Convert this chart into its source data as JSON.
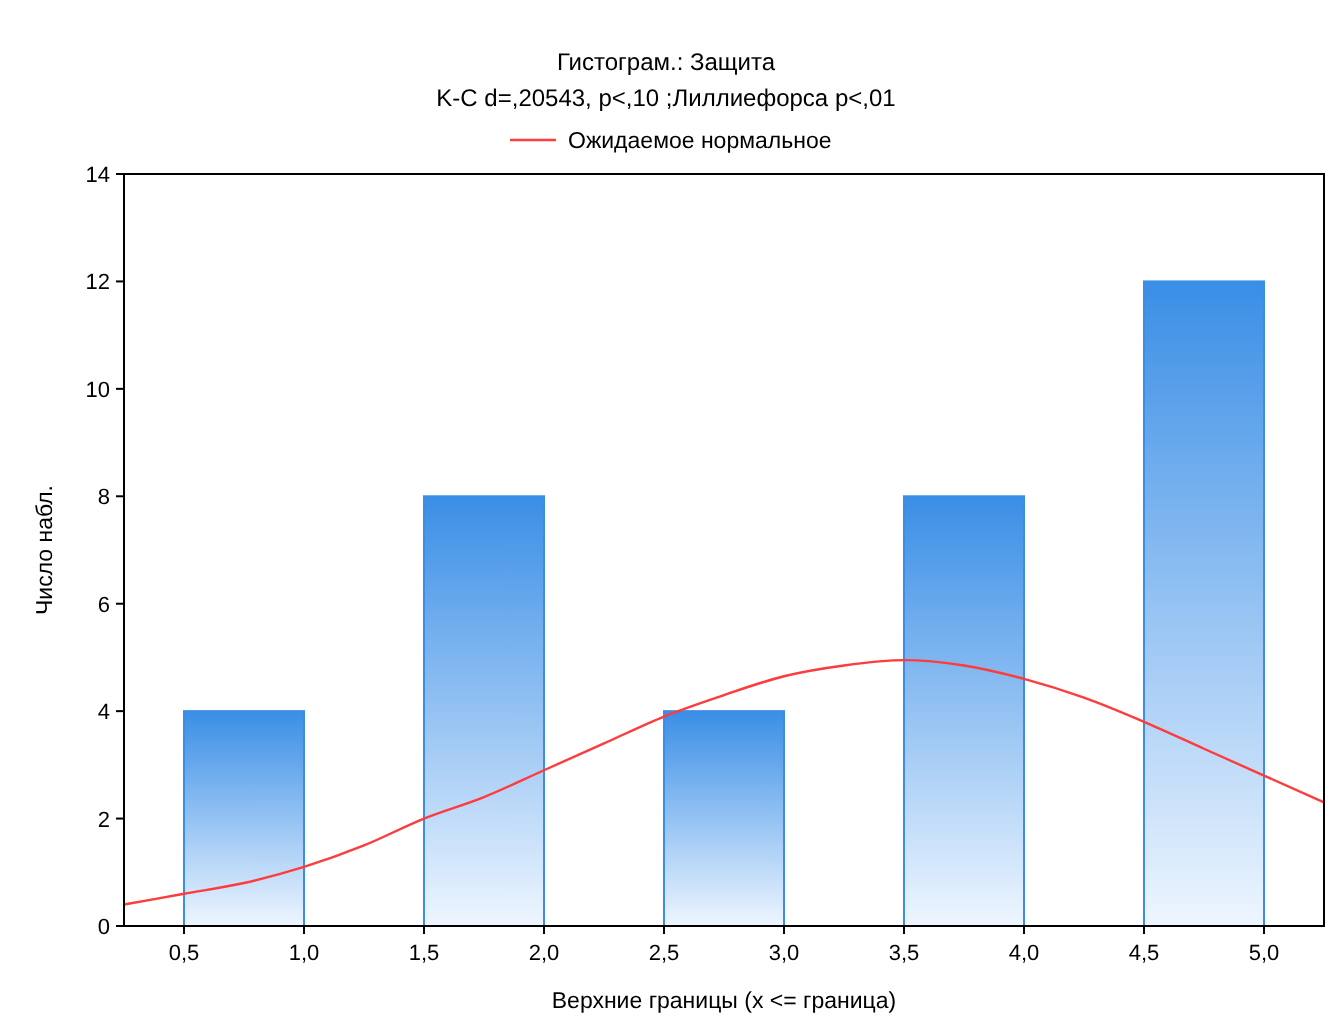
{
  "chart_data": {
    "type": "histogram",
    "title": "Гистограм.: Защита",
    "subtitle": "K-C d=,20543, p<,10 ;Лиллиефорса p<,01",
    "xlabel": "Верхние границы (x <= граница)",
    "ylabel": "Число набл.",
    "bins": [
      0.5,
      1.0,
      1.5,
      2.0,
      2.5,
      3.0,
      3.5,
      4.0,
      4.5,
      5.0
    ],
    "values": [
      4,
      0,
      8,
      0,
      4,
      0,
      8,
      0,
      12
    ],
    "color": "#3a8ee6",
    "series": [
      {
        "type": "line",
        "name": "Ожидаемое нормальное",
        "color": "#ff3b3b",
        "x": [
          0.25,
          0.5,
          0.75,
          1.0,
          1.25,
          1.5,
          1.75,
          2.0,
          2.25,
          2.5,
          2.75,
          3.0,
          3.25,
          3.5,
          3.75,
          4.0,
          4.25,
          4.5,
          4.75,
          5.0,
          5.25
        ],
        "values": [
          0.4,
          0.6,
          0.8,
          1.1,
          1.5,
          2.0,
          2.4,
          2.9,
          3.4,
          3.9,
          4.3,
          4.65,
          4.85,
          4.95,
          4.85,
          4.6,
          4.25,
          3.8,
          3.3,
          2.8,
          2.3
        ]
      }
    ],
    "xlim": [
      0.25,
      5.25
    ],
    "xticks": [
      {
        "value": 0.5,
        "label": "0,5"
      },
      {
        "value": 1.0,
        "label": "1,0"
      },
      {
        "value": 1.5,
        "label": "1,5"
      },
      {
        "value": 2.0,
        "label": "2,0"
      },
      {
        "value": 2.5,
        "label": "2,5"
      },
      {
        "value": 3.0,
        "label": "3,0"
      },
      {
        "value": 3.5,
        "label": "3,5"
      },
      {
        "value": 4.0,
        "label": "4,0"
      },
      {
        "value": 4.5,
        "label": "4,5"
      },
      {
        "value": 5.0,
        "label": "5,0"
      }
    ],
    "ylim": [
      0,
      14
    ],
    "yticks": [
      0,
      2,
      4,
      6,
      8,
      10,
      12,
      14
    ],
    "legend": "top"
  }
}
